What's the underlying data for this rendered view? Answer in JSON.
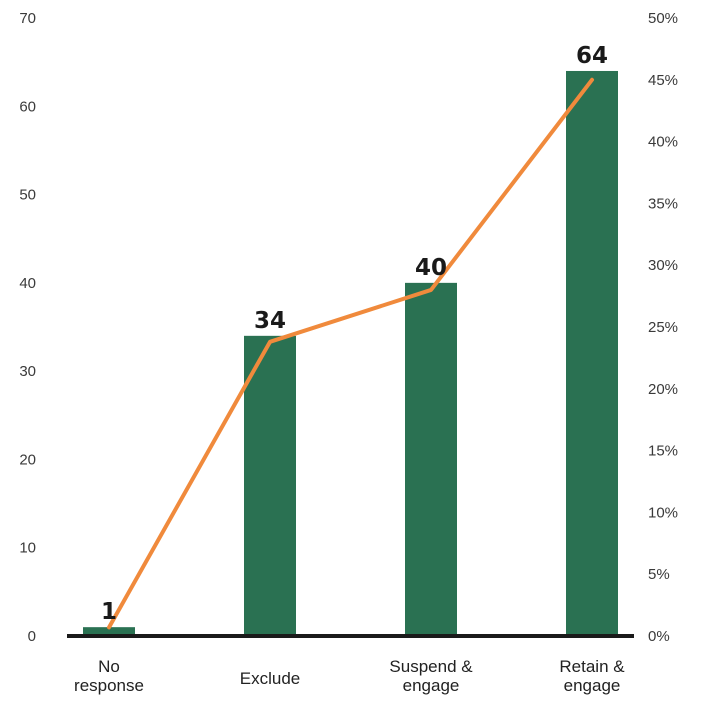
{
  "colors": {
    "bar": "#2a7152",
    "line": "#f08a3c",
    "baseline": "#1a1a1a"
  },
  "chart_data": {
    "type": "bar",
    "categories": [
      [
        "No",
        "response"
      ],
      [
        "Exclude"
      ],
      [
        "Suspend &",
        "engage"
      ],
      [
        "Retain &",
        "engage"
      ]
    ],
    "values": [
      1,
      34,
      40,
      64
    ],
    "data_labels": [
      "1",
      "34",
      "40",
      "64"
    ],
    "ylim": [
      0,
      70
    ],
    "y_ticks": [
      "0",
      "10",
      "20",
      "30",
      "40",
      "50",
      "60",
      "70"
    ],
    "y2lim": [
      0,
      50
    ],
    "y2_ticks": [
      "0%",
      "5%",
      "10%",
      "15%",
      "20%",
      "25%",
      "30%",
      "35%",
      "40%",
      "45%",
      "50%"
    ],
    "line_series": {
      "axis": "right",
      "values": [
        0.7,
        23.8,
        28.0,
        45.0
      ]
    },
    "grid": false,
    "title": "",
    "xlabel": "",
    "ylabel": ""
  }
}
